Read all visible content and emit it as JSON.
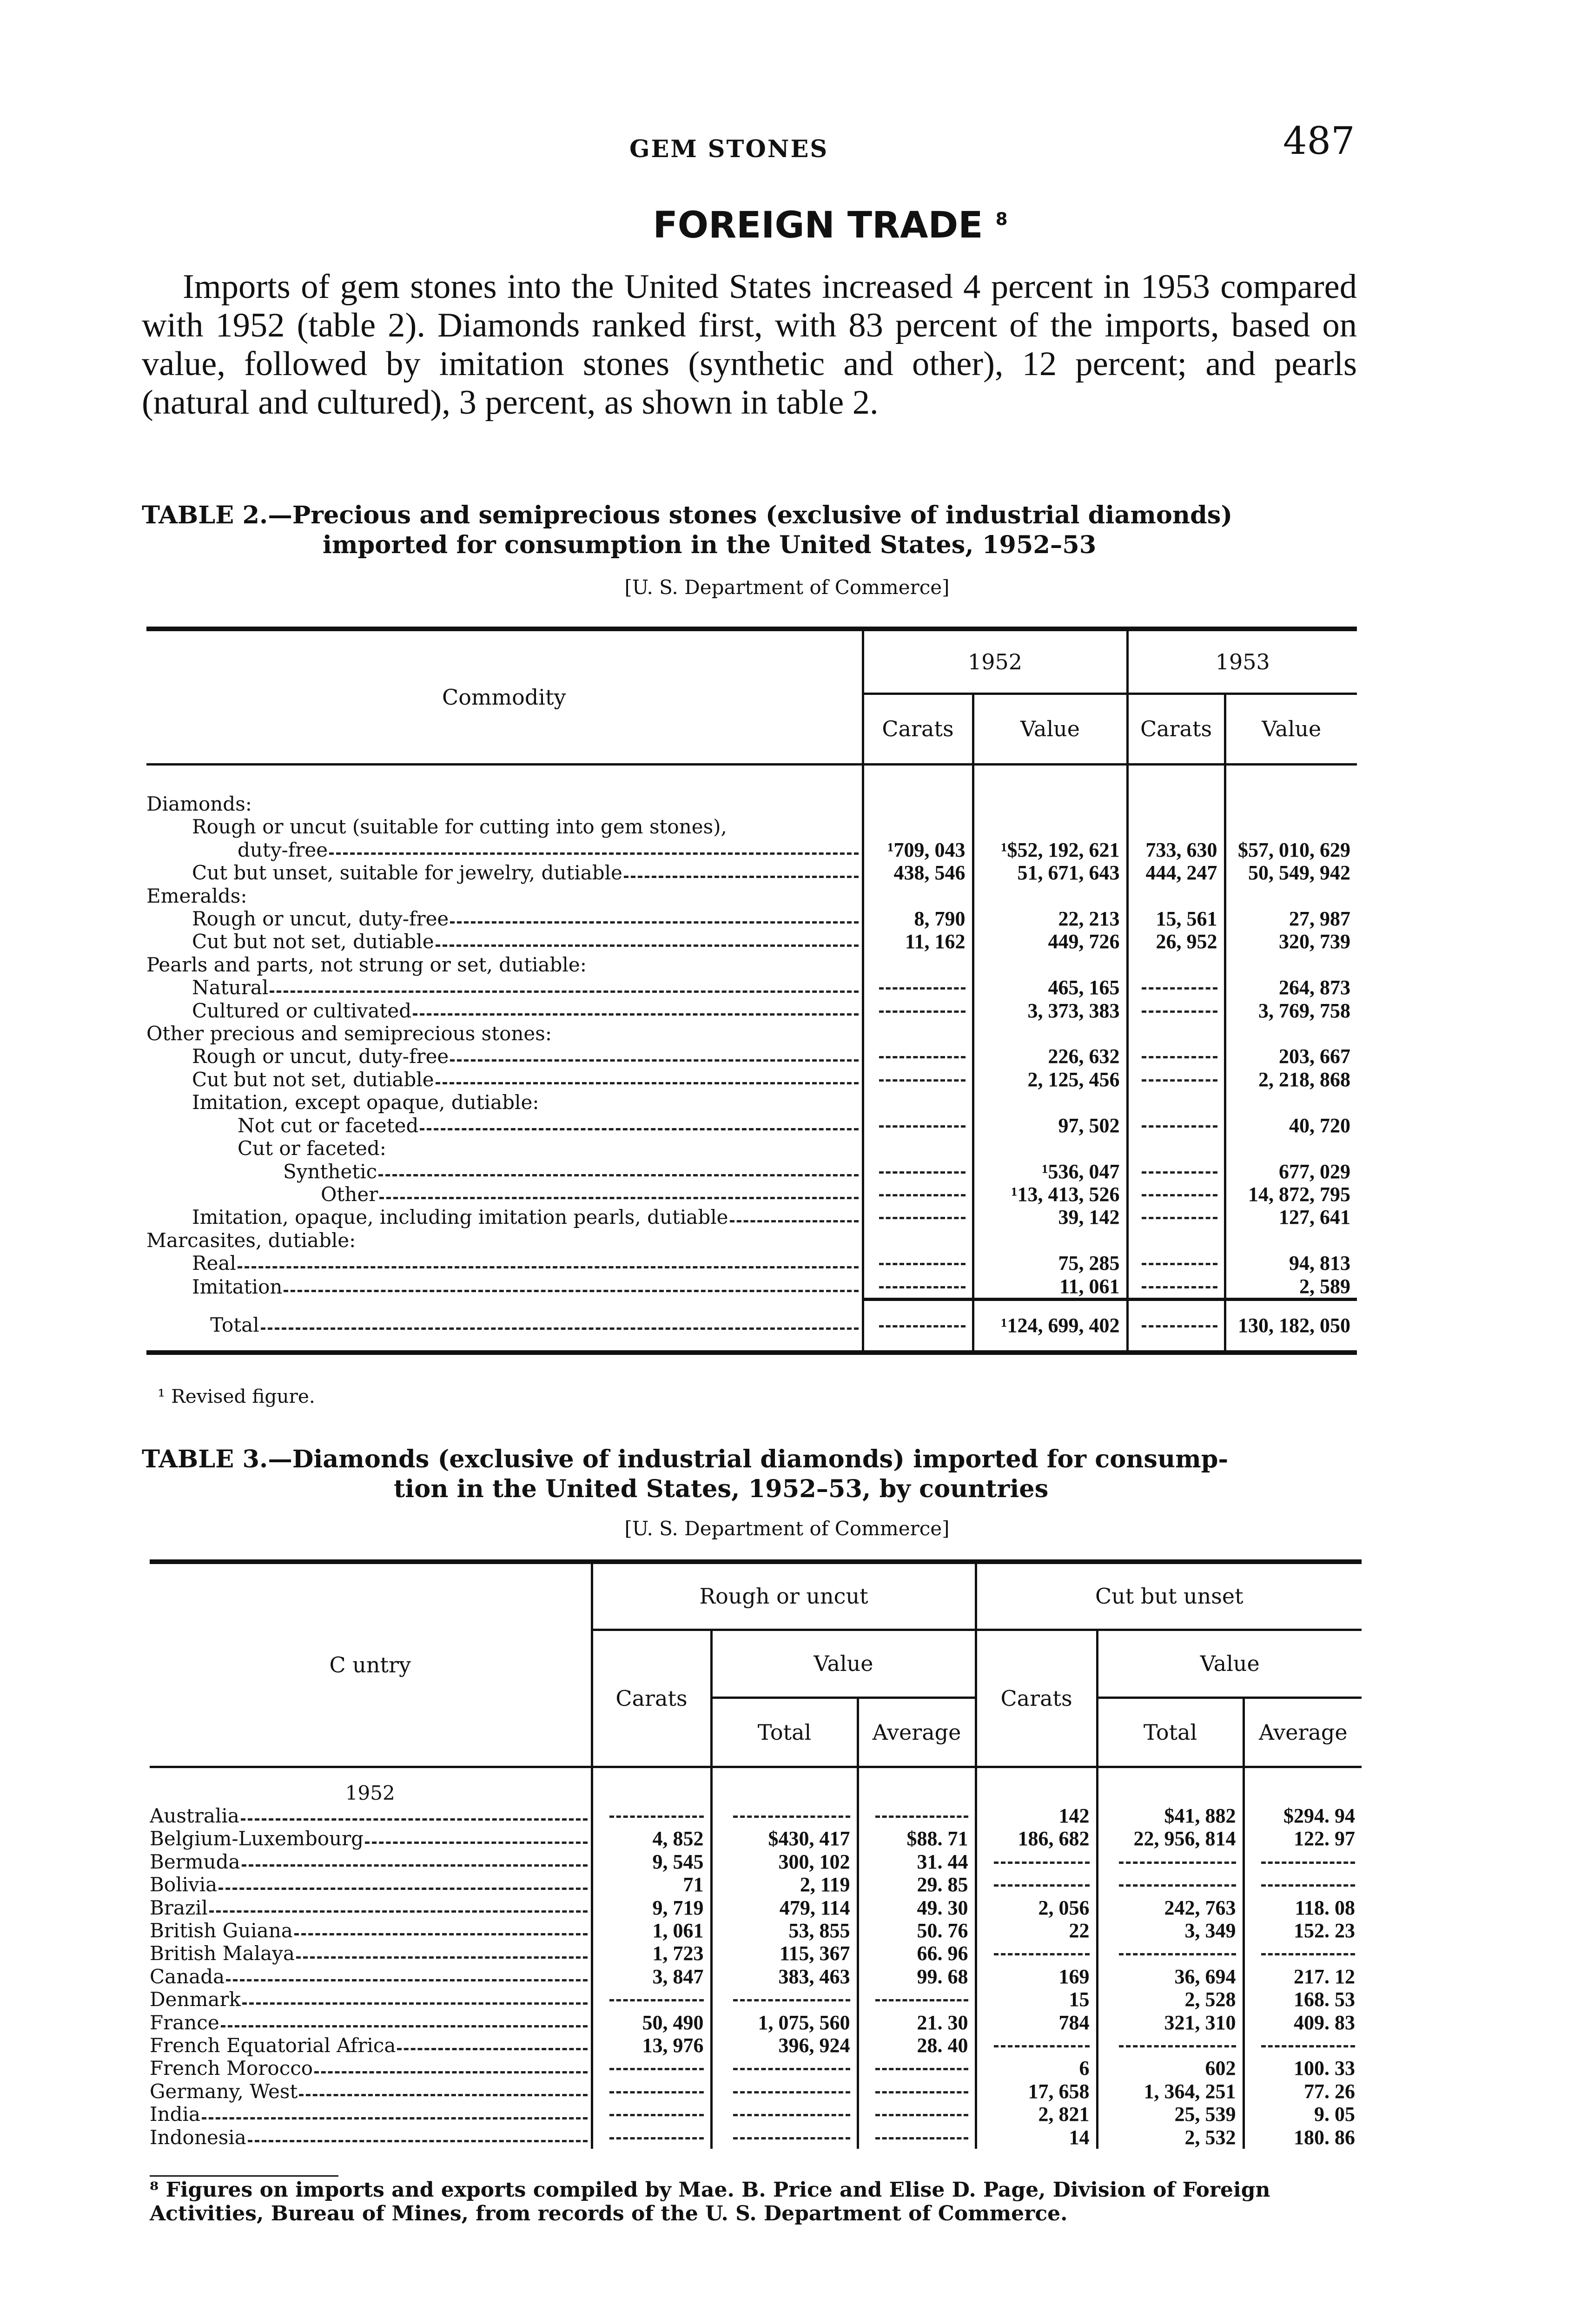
{
  "header": {
    "running_title": "GEM STONES",
    "page_number": "487"
  },
  "section": {
    "title": "FOREIGN TRADE",
    "footnote_mark": "8"
  },
  "intro": "Imports of gem stones into the United States increased 4 percent in 1953 compared with 1952 (table 2). Diamonds ranked first, with 83 percent of the imports, based on value, followed by imitation stones (synthetic and other), 12 percent; and pearls (natural and cultured), 3 percent, as shown in table 2.",
  "table2": {
    "caption_line1": "TABLE 2.—Precious and semiprecious stones (exclusive of industrial diamonds)",
    "caption_line2": "imported for consumption in the United States, 1952–53",
    "source": "[U. S. Department of Commerce]",
    "headers": {
      "commodity": "Commodity",
      "year1": "1952",
      "year2": "1953",
      "carats": "Carats",
      "value": "Value"
    },
    "rows": [
      {
        "label": "Diamonds:",
        "indent": 0,
        "heading": true
      },
      {
        "label": "Rough or uncut (suitable for cutting into gem stones),",
        "indent": 1,
        "heading": true
      },
      {
        "label": "duty-free",
        "indent": 2,
        "cells": [
          "¹709, 043",
          "¹$52, 192, 621",
          "733, 630",
          "$57, 010, 629"
        ]
      },
      {
        "label": "Cut but unset, suitable for jewelry, dutiable",
        "indent": 1,
        "cells": [
          "438, 546",
          "51, 671, 643",
          "444, 247",
          "50, 549, 942"
        ]
      },
      {
        "label": "Emeralds:",
        "indent": 0,
        "heading": true
      },
      {
        "label": "Rough or uncut, duty-free",
        "indent": 1,
        "cells": [
          "8, 790",
          "22, 213",
          "15, 561",
          "27, 987"
        ]
      },
      {
        "label": "Cut but not set, dutiable",
        "indent": 1,
        "cells": [
          "11, 162",
          "449, 726",
          "26, 952",
          "320, 739"
        ]
      },
      {
        "label": "Pearls and parts, not strung or set, dutiable:",
        "indent": 0,
        "heading": true
      },
      {
        "label": "Natural",
        "indent": 1,
        "cells": [
          "-",
          "465, 165",
          "-",
          "264, 873"
        ]
      },
      {
        "label": "Cultured or cultivated",
        "indent": 1,
        "cells": [
          "-",
          "3, 373, 383",
          "-",
          "3, 769, 758"
        ]
      },
      {
        "label": "Other precious and semiprecious stones:",
        "indent": 0,
        "heading": true
      },
      {
        "label": "Rough or uncut, duty-free",
        "indent": 1,
        "cells": [
          "-",
          "226, 632",
          "-",
          "203, 667"
        ]
      },
      {
        "label": "Cut but not set, dutiable",
        "indent": 1,
        "cells": [
          "-",
          "2, 125, 456",
          "-",
          "2, 218, 868"
        ]
      },
      {
        "label": "Imitation, except opaque, dutiable:",
        "indent": 1,
        "heading": true
      },
      {
        "label": "Not cut or faceted",
        "indent": 2,
        "cells": [
          "-",
          "97, 502",
          "-",
          "40, 720"
        ]
      },
      {
        "label": "Cut or faceted:",
        "indent": 2,
        "heading": true
      },
      {
        "label": "Synthetic",
        "indent": 3,
        "cells": [
          "-",
          "¹536, 047",
          "-",
          "677, 029"
        ]
      },
      {
        "label": "Other",
        "indent": 4,
        "cells": [
          "-",
          "¹13, 413, 526",
          "-",
          "14, 872, 795"
        ]
      },
      {
        "label": "Imitation, opaque, including imitation pearls, dutiable",
        "indent": 1,
        "cells": [
          "-",
          "39, 142",
          "-",
          "127, 641"
        ]
      },
      {
        "label": "Marcasites, dutiable:",
        "indent": 0,
        "heading": true
      },
      {
        "label": "Real",
        "indent": 1,
        "cells": [
          "-",
          "75, 285",
          "-",
          "94, 813"
        ]
      },
      {
        "label": "Imitation",
        "indent": 1,
        "cells": [
          "-",
          "11, 061",
          "-",
          "2, 589"
        ]
      }
    ],
    "total": {
      "label": "Total",
      "cells": [
        "-",
        "¹124, 699, 402",
        "-",
        "130, 182, 050"
      ]
    },
    "footnote": "¹ Revised figure."
  },
  "table3": {
    "caption_line1": "TABLE 3.—Diamonds (exclusive of industrial diamonds) imported for consump-",
    "caption_line2": "tion in the United States, 1952–53, by countries",
    "source": "[U. S. Department of Commerce]",
    "headers": {
      "country": "C untry",
      "rough": "Rough or uncut",
      "cut": "Cut but unset",
      "carats": "Carats",
      "value": "Value",
      "total": "Total",
      "average": "Average"
    },
    "section": "1952",
    "rows": [
      {
        "country": "Australia",
        "cells": [
          "-",
          "-",
          "-",
          "142",
          "$41, 882",
          "$294. 94"
        ]
      },
      {
        "country": "Belgium-Luxembourg",
        "cells": [
          "4, 852",
          "$430, 417",
          "$88. 71",
          "186, 682",
          "22, 956, 814",
          "122. 97"
        ]
      },
      {
        "country": "Bermuda",
        "cells": [
          "9, 545",
          "300, 102",
          "31. 44",
          "-",
          "-",
          "-"
        ]
      },
      {
        "country": "Bolivia",
        "cells": [
          "71",
          "2, 119",
          "29. 85",
          "-",
          "-",
          "-"
        ]
      },
      {
        "country": "Brazil",
        "cells": [
          "9, 719",
          "479, 114",
          "49. 30",
          "2, 056",
          "242, 763",
          "118. 08"
        ]
      },
      {
        "country": "British Guiana",
        "cells": [
          "1, 061",
          "53, 855",
          "50. 76",
          "22",
          "3, 349",
          "152. 23"
        ]
      },
      {
        "country": "British Malaya",
        "cells": [
          "1, 723",
          "115, 367",
          "66. 96",
          "-",
          "-",
          "-"
        ]
      },
      {
        "country": "Canada",
        "cells": [
          "3, 847",
          "383, 463",
          "99. 68",
          "169",
          "36, 694",
          "217. 12"
        ]
      },
      {
        "country": "Denmark",
        "cells": [
          "-",
          "-",
          "-",
          "15",
          "2, 528",
          "168. 53"
        ]
      },
      {
        "country": "France",
        "cells": [
          "50, 490",
          "1, 075, 560",
          "21. 30",
          "784",
          "321, 310",
          "409. 83"
        ]
      },
      {
        "country": "French Equatorial Africa",
        "cells": [
          "13, 976",
          "396, 924",
          "28. 40",
          "-",
          "-",
          "-"
        ]
      },
      {
        "country": "French Morocco",
        "cells": [
          "-",
          "-",
          "-",
          "6",
          "602",
          "100. 33"
        ]
      },
      {
        "country": "Germany, West",
        "cells": [
          "-",
          "-",
          "-",
          "17, 658",
          "1, 364, 251",
          "77. 26"
        ]
      },
      {
        "country": "India",
        "cells": [
          "-",
          "-",
          "-",
          "2, 821",
          "25, 539",
          "9. 05"
        ]
      },
      {
        "country": "Indonesia",
        "cells": [
          "-",
          "-",
          "-",
          "14",
          "2, 532",
          "180. 86"
        ]
      }
    ]
  },
  "footnote8": "⁸ Figures on imports and exports compiled by Mae. B. Price and Elise D. Page, Division of Foreign Activities, Bureau of Mines, from records of the U. S. Department of Commerce."
}
